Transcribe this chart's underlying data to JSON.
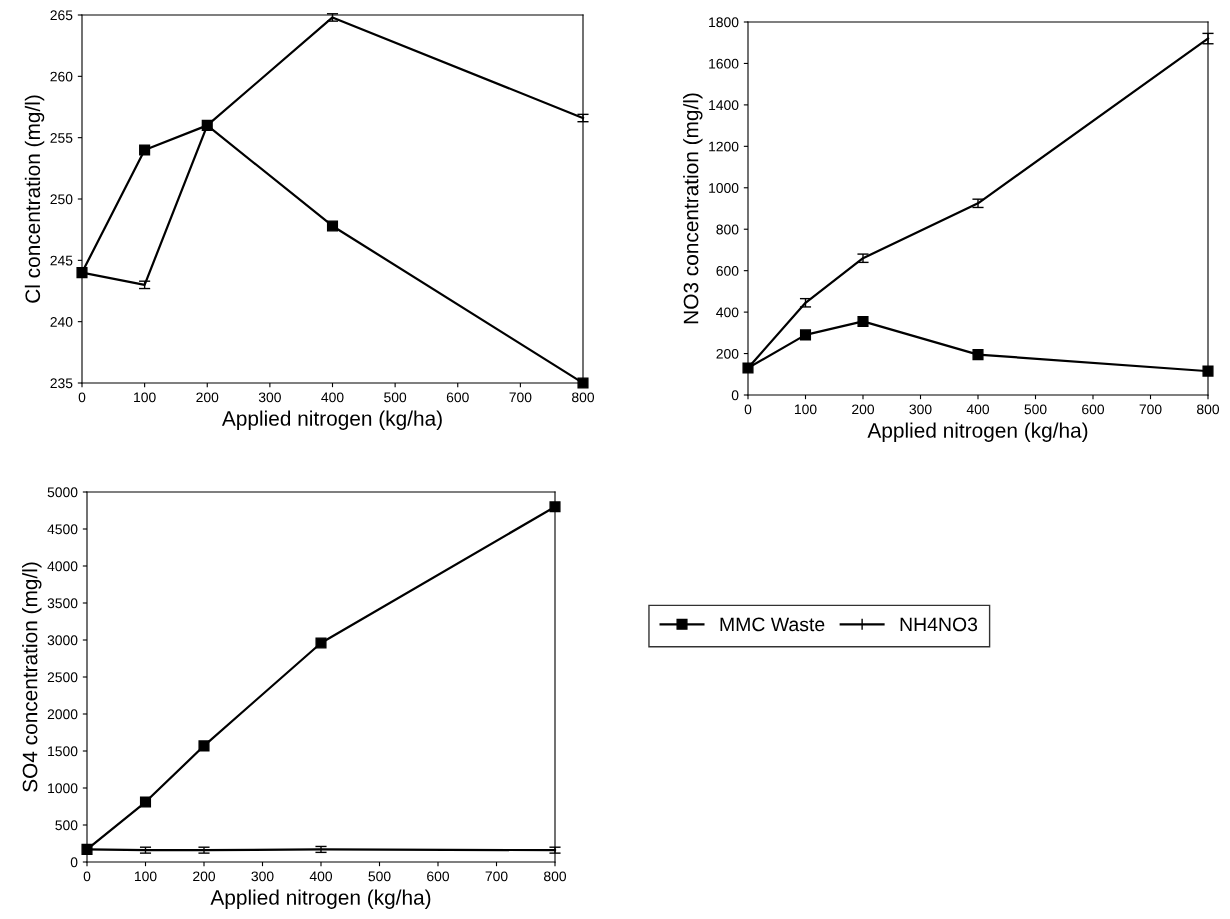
{
  "chart_data": [
    {
      "type": "line",
      "xlabel": "Applied nitrogen (kg/ha)",
      "ylabel": "Cl concentration (mg/l)",
      "x": [
        0,
        100,
        200,
        400,
        800
      ],
      "xlim": [
        0,
        800
      ],
      "xticks": [
        0,
        100,
        200,
        300,
        400,
        500,
        600,
        700,
        800
      ],
      "ylim": [
        235,
        265
      ],
      "yticks": [
        235,
        240,
        245,
        250,
        255,
        260,
        265
      ],
      "grid": false,
      "legend": false,
      "series": [
        {
          "color": "#000000",
          "marker": "square",
          "values": [
            244,
            254,
            256,
            247.8,
            235
          ]
        },
        {
          "color": "#000000",
          "marker": "none",
          "values": [
            244,
            243,
            256,
            264.8,
            256.6
          ],
          "errors": [
            null,
            0.3,
            null,
            0.3,
            0.3
          ]
        }
      ]
    },
    {
      "type": "line",
      "xlabel": "Applied nitrogen (kg/ha)",
      "ylabel": "NO3 concentration (mg/l)",
      "x": [
        0,
        100,
        200,
        400,
        800
      ],
      "xlim": [
        0,
        800
      ],
      "xticks": [
        0,
        100,
        200,
        300,
        400,
        500,
        600,
        700,
        800
      ],
      "ylim": [
        0,
        1800
      ],
      "yticks": [
        0,
        200,
        400,
        600,
        800,
        1000,
        1200,
        1400,
        1600,
        1800
      ],
      "grid": false,
      "legend": false,
      "series": [
        {
          "color": "#000000",
          "marker": "square",
          "values": [
            130,
            290,
            355,
            195,
            115
          ]
        },
        {
          "color": "#000000",
          "marker": "none",
          "values": [
            130,
            445,
            660,
            925,
            1720
          ],
          "errors": [
            null,
            20,
            20,
            20,
            25
          ]
        }
      ]
    },
    {
      "type": "line",
      "xlabel": "Applied nitrogen (kg/ha)",
      "ylabel": "SO4 concentration (mg/l)",
      "x": [
        0,
        100,
        200,
        400,
        800
      ],
      "xlim": [
        0,
        800
      ],
      "xticks": [
        0,
        100,
        200,
        300,
        400,
        500,
        600,
        700,
        800
      ],
      "ylim": [
        0,
        5000
      ],
      "yticks": [
        0,
        500,
        1000,
        1500,
        2000,
        2500,
        3000,
        3500,
        4000,
        4500,
        5000
      ],
      "grid": false,
      "legend": "right",
      "series": [
        {
          "name": "MMC Waste",
          "color": "#000000",
          "marker": "square",
          "values": [
            170,
            810,
            1570,
            2960,
            4800
          ]
        },
        {
          "name": "NH4NO3",
          "color": "#000000",
          "marker": "none",
          "values": [
            170,
            160,
            160,
            170,
            160
          ],
          "errors": [
            null,
            40,
            40,
            40,
            40
          ]
        }
      ]
    }
  ]
}
